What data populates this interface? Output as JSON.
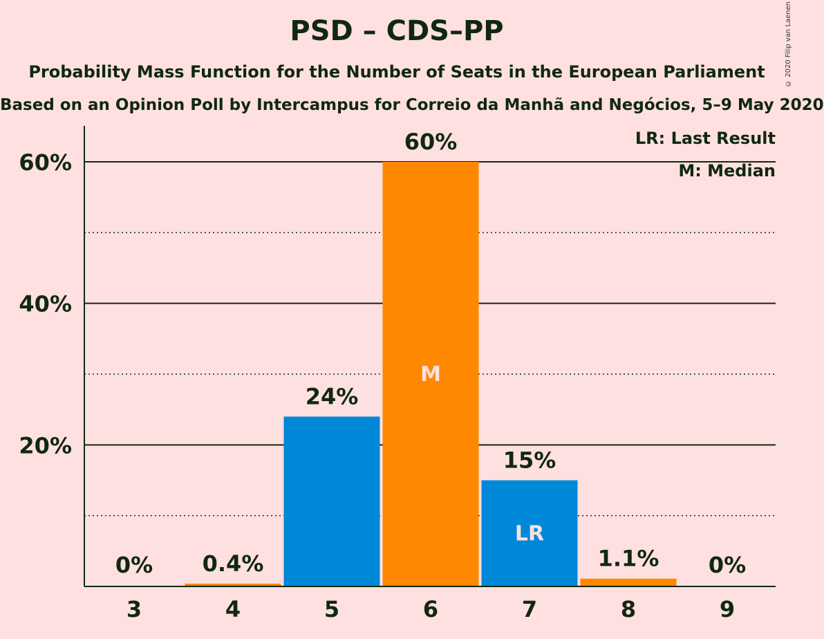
{
  "chart_data": {
    "type": "bar",
    "title": "PSD – CDS–PP",
    "subtitle": "Probability Mass Function for the Number of Seats in the European Parliament",
    "subtitle2": "Based on an Opinion Poll by Intercampus for Correio da Manhã and Negócios, 5–9 May 2020",
    "copyright": "© 2020 Filip van Laenen",
    "categories": [
      "3",
      "4",
      "5",
      "6",
      "7",
      "8",
      "9"
    ],
    "values": [
      0,
      0.4,
      24,
      60,
      15,
      1.1,
      0
    ],
    "value_labels": [
      "0%",
      "0.4%",
      "24%",
      "60%",
      "15%",
      "1.1%",
      "0%"
    ],
    "bar_colors": [
      "#0088d8",
      "#ff8800",
      "#0088d8",
      "#ff8800",
      "#0088d8",
      "#ff8800",
      "#0088d8"
    ],
    "bar_marks": [
      "",
      "",
      "",
      "M",
      "LR",
      "",
      ""
    ],
    "ylim": [
      0,
      65
    ],
    "yticks": [
      {
        "value": 20,
        "label": "20%"
      },
      {
        "value": 40,
        "label": "40%"
      },
      {
        "value": 60,
        "label": "60%"
      }
    ],
    "minor_gridlines": [
      10,
      30,
      50
    ],
    "grid": true,
    "legend": {
      "placement": "top-right",
      "items": [
        "LR: Last Result",
        "M: Median"
      ]
    },
    "colors": {
      "background": "#ffe0e0",
      "text": "#102810",
      "blue": "#0088d8",
      "orange": "#ff8800"
    }
  }
}
